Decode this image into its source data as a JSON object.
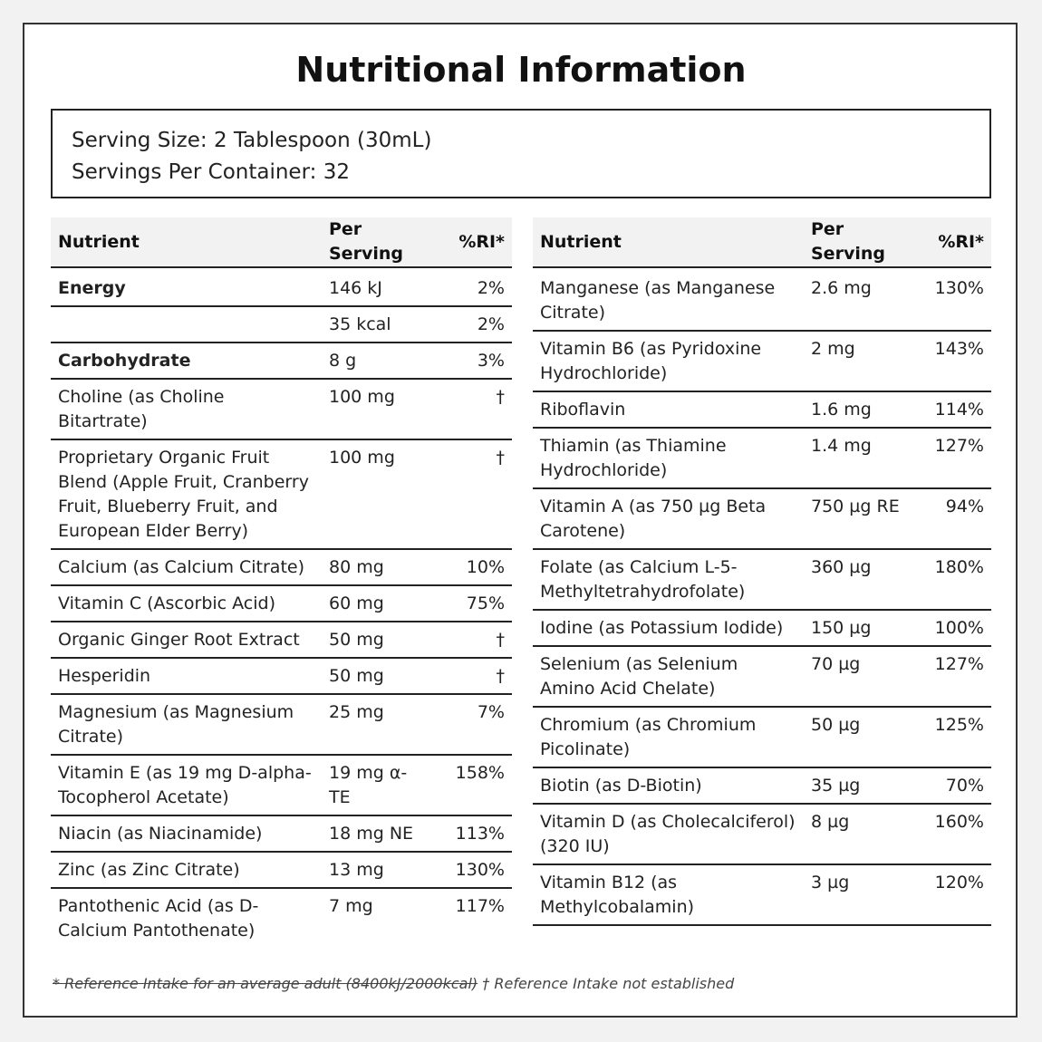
{
  "title": "Nutritional Information",
  "serving": {
    "size": "Serving Size: 2 Tablespoon (30mL)",
    "per_container": "Servings Per Container: 32"
  },
  "headers": {
    "nutrient": "Nutrient",
    "per_serving": "Per Serving",
    "ri": "%RI*"
  },
  "left_rows": [
    {
      "nutrient": "Energy",
      "amount": "146 kJ",
      "ri": "2%",
      "bold": true
    },
    {
      "nutrient": "",
      "amount": "35 kcal",
      "ri": "2%"
    },
    {
      "nutrient": "Carbohydrate",
      "amount": "8 g",
      "ri": "3%",
      "bold": true
    },
    {
      "nutrient": "Choline (as Choline Bitartrate)",
      "amount": "100 mg",
      "ri": "†"
    },
    {
      "nutrient": "Proprietary Organic Fruit Blend (Apple Fruit, Cranberry Fruit, Blueberry Fruit, and European Elder Berry)",
      "amount": "100 mg",
      "ri": "†"
    },
    {
      "nutrient": "Calcium (as Calcium Citrate)",
      "amount": "80 mg",
      "ri": "10%"
    },
    {
      "nutrient": "Vitamin C (Ascorbic Acid)",
      "amount": "60 mg",
      "ri": "75%"
    },
    {
      "nutrient": "Organic Ginger Root Extract",
      "amount": "50 mg",
      "ri": "†"
    },
    {
      "nutrient": "Hesperidin",
      "amount": "50 mg",
      "ri": "†"
    },
    {
      "nutrient": "Magnesium (as Magnesium Citrate)",
      "amount": "25 mg",
      "ri": "7%"
    },
    {
      "nutrient": "Vitamin E (as 19 mg D-alpha-Tocopherol Acetate)",
      "amount": "19 mg α-TE",
      "ri": "158%"
    },
    {
      "nutrient": "Niacin (as Niacinamide)",
      "amount": "18 mg NE",
      "ri": "113%"
    },
    {
      "nutrient": "Zinc (as Zinc Citrate)",
      "amount": "13 mg",
      "ri": "130%"
    },
    {
      "nutrient": "Pantothenic Acid (as D-Calcium Pantothenate)",
      "amount": "7 mg",
      "ri": "117%"
    }
  ],
  "right_rows": [
    {
      "nutrient": "Manganese (as Manganese Citrate)",
      "amount": "2.6 mg",
      "ri": "130%"
    },
    {
      "nutrient": "Vitamin B6 (as Pyridoxine Hydrochloride)",
      "amount": "2 mg",
      "ri": "143%"
    },
    {
      "nutrient": "Riboflavin",
      "amount": "1.6 mg",
      "ri": "114%"
    },
    {
      "nutrient": "Thiamin (as Thiamine Hydrochloride)",
      "amount": "1.4 mg",
      "ri": "127%"
    },
    {
      "nutrient": "Vitamin A (as 750 µg Beta Carotene)",
      "amount": "750 µg RE",
      "ri": "94%"
    },
    {
      "nutrient": "Folate (as Calcium L-5-Methyltetrahydrofolate)",
      "amount": "360 µg",
      "ri": "180%"
    },
    {
      "nutrient": "Iodine (as Potassium Iodide)",
      "amount": "150 µg",
      "ri": "100%"
    },
    {
      "nutrient": "Selenium (as Selenium Amino Acid Chelate)",
      "amount": "70 µg",
      "ri": "127%"
    },
    {
      "nutrient": "Chromium (as Chromium Picolinate)",
      "amount": "50 µg",
      "ri": "125%"
    },
    {
      "nutrient": "Biotin (as D-Biotin)",
      "amount": "35 µg",
      "ri": "70%"
    },
    {
      "nutrient": "Vitamin D (as Cholecalciferol) (320 IU)",
      "amount": "8 µg",
      "ri": "160%"
    },
    {
      "nutrient": "Vitamin B12 (as Methylcobalamin)",
      "amount": "3 µg",
      "ri": "120%"
    }
  ],
  "footnote": {
    "reference": "* Reference Intake for an average adult (8400kJ/2000kcal)",
    "not_established": "† Reference Intake not established"
  }
}
